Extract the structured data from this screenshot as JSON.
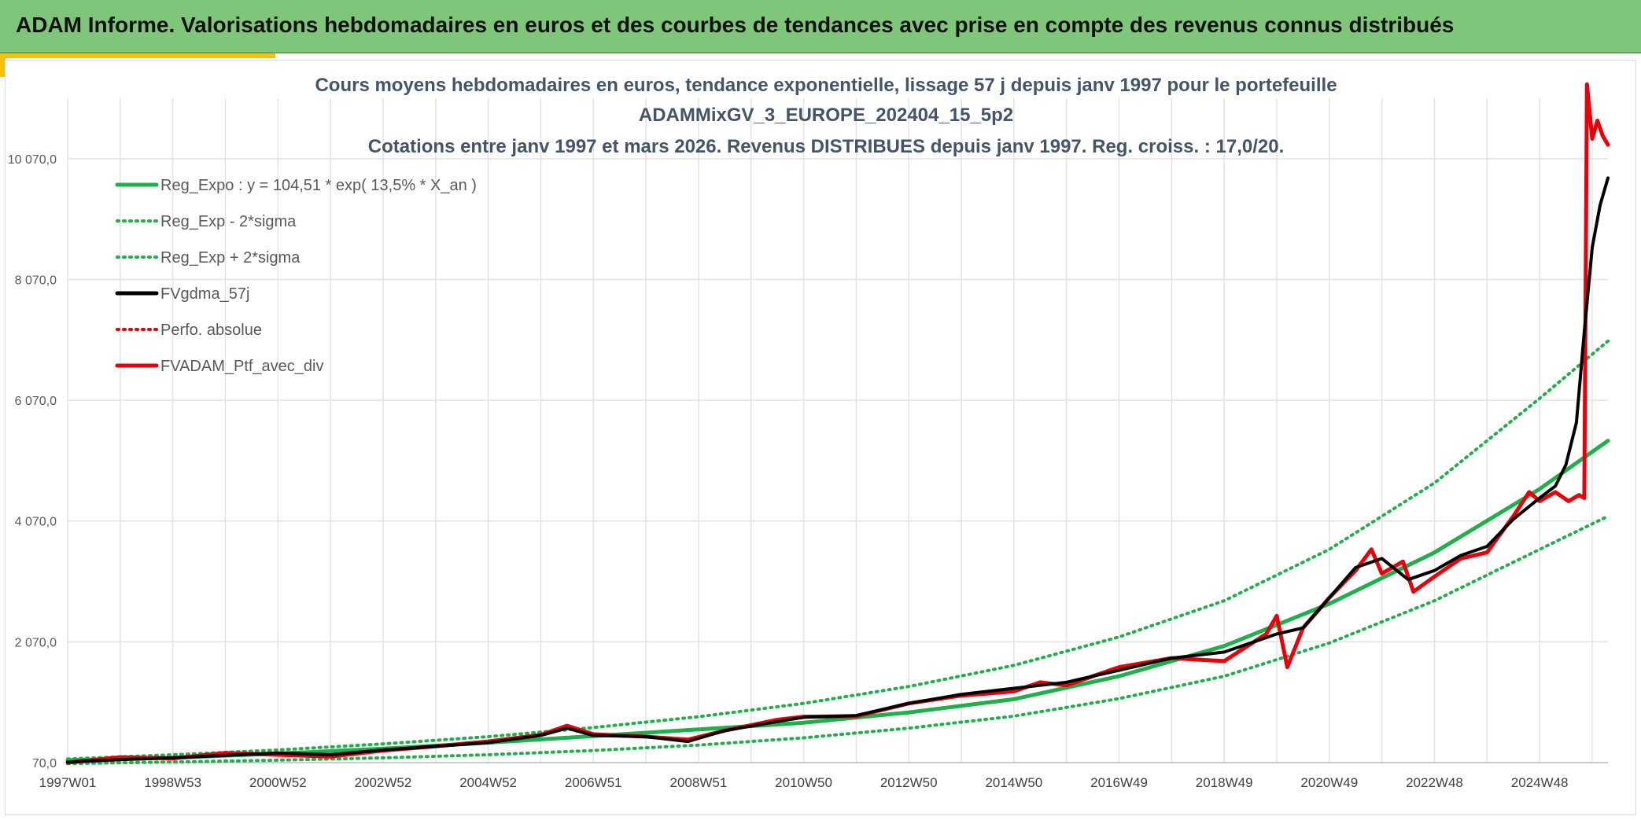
{
  "header": {
    "title": "ADAM Informe. Valorisations hebdomadaires en euros et des courbes de tendances avec prise en compte des revenus connus distribués"
  },
  "colors": {
    "banner": "#80c67a",
    "accent": "#f4c20d",
    "reg_expo": "#1fb04c",
    "reg_band": "#1fb04c",
    "fvgdma": "#000000",
    "portfolio": "#e8000b",
    "grid": "#e3e3e3"
  },
  "chart_data": {
    "type": "line",
    "title_lines": [
      "Cours moyens hebdomadaires en euros, tendance exponentielle, lissage 57 j depuis janv 1997 pour le portefeuille",
      "ADAMMixGV_3_EUROPE_202404_15_5p2",
      "Cotations entre janv 1997 et mars 2026. Revenus DISTRIBUES depuis janv 1997. Reg. croiss. : 17,0/20."
    ],
    "y_ticks": [
      {
        "value": 70,
        "label": "70,0"
      },
      {
        "value": 2070,
        "label": "2 070,0"
      },
      {
        "value": 4070,
        "label": "4 070,0"
      },
      {
        "value": 6070,
        "label": "6 070,0"
      },
      {
        "value": 8070,
        "label": "8 070,0"
      },
      {
        "value": 10070,
        "label": "10 070,0"
      }
    ],
    "ylim": [
      70,
      11070
    ],
    "xlim": [
      1997.0,
      2026.3
    ],
    "x_ticks": [
      {
        "t": 1997.0,
        "label": "1997W01"
      },
      {
        "t": 1999.0,
        "label": "1998W53"
      },
      {
        "t": 2001.0,
        "label": "2000W52"
      },
      {
        "t": 2003.0,
        "label": "2002W52"
      },
      {
        "t": 2005.0,
        "label": "2004W52"
      },
      {
        "t": 2007.0,
        "label": "2006W51"
      },
      {
        "t": 2009.0,
        "label": "2008W51"
      },
      {
        "t": 2011.0,
        "label": "2010W50"
      },
      {
        "t": 2013.0,
        "label": "2012W50"
      },
      {
        "t": 2015.0,
        "label": "2014W50"
      },
      {
        "t": 2017.0,
        "label": "2016W49"
      },
      {
        "t": 2019.0,
        "label": "2018W49"
      },
      {
        "t": 2021.0,
        "label": "2020W49"
      },
      {
        "t": 2023.0,
        "label": "2022W48"
      },
      {
        "t": 2025.0,
        "label": "2024W48"
      }
    ],
    "legend": [
      {
        "name": "Reg_Expo : y = 104,51 * exp( 13,5% *  X_an )",
        "style": "solid-green"
      },
      {
        "name": "Reg_Exp - 2*sigma",
        "style": "dotted-green"
      },
      {
        "name": "Reg_Exp + 2*sigma",
        "style": "dotted-green"
      },
      {
        "name": "FVgdma_57j",
        "style": "solid-black"
      },
      {
        "name": "Perfo. absolue",
        "style": "dotted-red"
      },
      {
        "name": "FVADAM_Ptf_avec_div",
        "style": "solid-red"
      }
    ],
    "series": [
      {
        "name": "Reg_Expo",
        "x": [
          1997.0,
          1999.0,
          2001.0,
          2003.0,
          2005.0,
          2007.0,
          2009.0,
          2011.0,
          2013.0,
          2015.0,
          2017.0,
          2019.0,
          2021.0,
          2023.0,
          2025.0,
          2026.3
        ],
        "y": [
          110,
          150,
          220,
          300,
          400,
          510,
          620,
          730,
          900,
          1120,
          1500,
          2000,
          2700,
          3550,
          4600,
          5400
        ]
      },
      {
        "name": "Reg_Exp - 2*sigma",
        "x": [
          1997.0,
          1999.0,
          2001.0,
          2003.0,
          2005.0,
          2007.0,
          2009.0,
          2011.0,
          2013.0,
          2015.0,
          2017.0,
          2019.0,
          2021.0,
          2023.0,
          2025.0,
          2026.3
        ],
        "y": [
          55,
          80,
          110,
          150,
          200,
          270,
          360,
          480,
          640,
          840,
          1130,
          1500,
          2050,
          2750,
          3600,
          4150
        ]
      },
      {
        "name": "Reg_Exp + 2*sigma",
        "x": [
          1997.0,
          1999.0,
          2001.0,
          2003.0,
          2005.0,
          2007.0,
          2009.0,
          2011.0,
          2013.0,
          2015.0,
          2017.0,
          2019.0,
          2021.0,
          2023.0,
          2025.0,
          2026.3
        ],
        "y": [
          130,
          200,
          280,
          380,
          500,
          650,
          830,
          1050,
          1330,
          1680,
          2150,
          2750,
          3600,
          4700,
          6100,
          7050
        ]
      },
      {
        "name": "FVgdma_57j",
        "x": [
          1997.0,
          1998.0,
          1999.0,
          2000.0,
          2001.0,
          2002.0,
          2003.0,
          2004.0,
          2005.0,
          2006.0,
          2006.5,
          2007.0,
          2008.0,
          2008.8,
          2009.5,
          2010.5,
          2011.0,
          2012.0,
          2013.0,
          2014.0,
          2015.0,
          2016.0,
          2017.0,
          2018.0,
          2019.0,
          2020.0,
          2020.5,
          2021.0,
          2021.5,
          2022.0,
          2022.5,
          2023.0,
          2023.5,
          2024.0,
          2024.5,
          2025.0,
          2025.3,
          2025.5,
          2025.7,
          2025.85,
          2026.0,
          2026.15,
          2026.3
        ],
        "y": [
          80,
          120,
          150,
          190,
          230,
          200,
          280,
          340,
          400,
          520,
          640,
          520,
          500,
          420,
          600,
          750,
          820,
          850,
          1050,
          1200,
          1300,
          1400,
          1600,
          1800,
          1900,
          2200,
          2300,
          2800,
          3300,
          3450,
          3100,
          3250,
          3500,
          3650,
          4100,
          4450,
          4650,
          5000,
          5700,
          7200,
          8600,
          9300,
          9750
        ]
      },
      {
        "name": "FVADAM_Ptf_avec_div",
        "x": [
          1997.0,
          1998.0,
          1999.0,
          2000.0,
          2001.0,
          2002.0,
          2003.0,
          2004.0,
          2005.0,
          2006.0,
          2006.5,
          2007.0,
          2008.0,
          2008.8,
          2009.5,
          2010.5,
          2011.0,
          2012.0,
          2013.0,
          2014.0,
          2015.0,
          2015.5,
          2016.0,
          2017.0,
          2018.0,
          2019.0,
          2019.8,
          2020.0,
          2020.2,
          2020.5,
          2021.0,
          2021.5,
          2021.8,
          2022.0,
          2022.4,
          2022.6,
          2023.0,
          2023.5,
          2024.0,
          2024.5,
          2024.8,
          2025.0,
          2025.3,
          2025.55,
          2025.75,
          2025.85,
          2025.9,
          2026.0,
          2026.1,
          2026.2,
          2026.3
        ],
        "y": [
          70,
          160,
          140,
          230,
          200,
          170,
          270,
          340,
          420,
          530,
          680,
          540,
          500,
          450,
          600,
          780,
          830,
          840,
          1050,
          1180,
          1250,
          1400,
          1350,
          1650,
          1800,
          1750,
          2200,
          2500,
          1650,
          2300,
          2800,
          3250,
          3600,
          3200,
          3400,
          2900,
          3150,
          3450,
          3550,
          4150,
          4550,
          4400,
          4550,
          4400,
          4500,
          4450,
          11300,
          10400,
          10700,
          10450,
          10300
        ]
      }
    ]
  }
}
